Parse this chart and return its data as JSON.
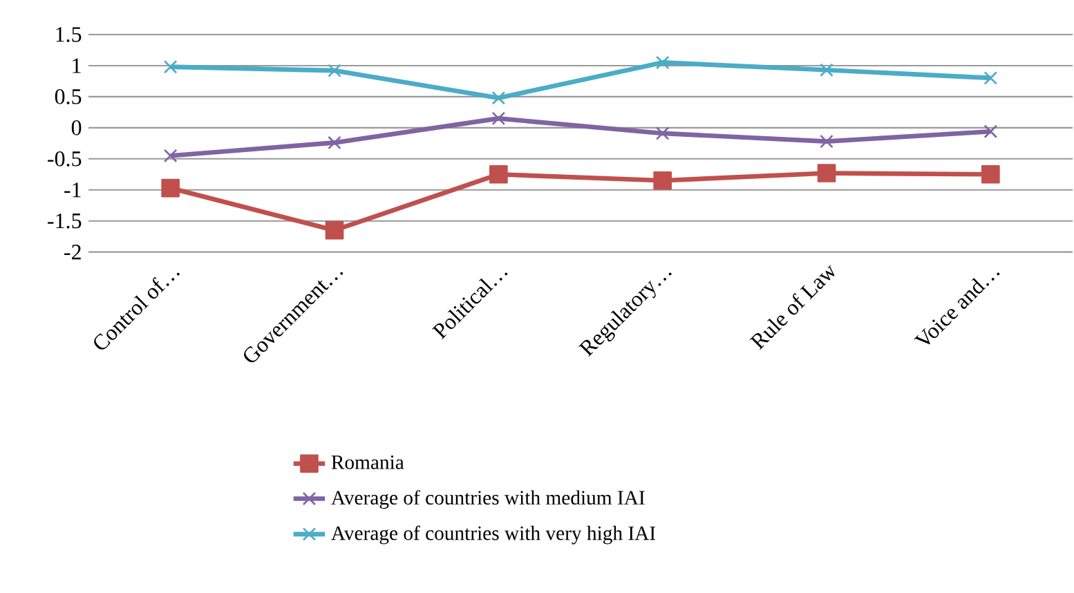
{
  "chart_data": {
    "type": "line",
    "categories": [
      "Control of…",
      "Government…",
      "Political…",
      "Regulatory…",
      "Rule of Law",
      "Voice and…"
    ],
    "series": [
      {
        "name": "Romania",
        "color": "#c0504d",
        "marker": "square",
        "values": [
          -0.97,
          -1.65,
          -0.75,
          -0.85,
          -0.73,
          -0.75
        ]
      },
      {
        "name": "Average of countries with medium IAI",
        "color": "#8064a2",
        "marker": "cross",
        "values": [
          -0.45,
          -0.24,
          0.15,
          -0.09,
          -0.22,
          -0.06
        ]
      },
      {
        "name": "Average of countries with very high IAI",
        "color": "#4bacc6",
        "marker": "cross",
        "values": [
          0.98,
          0.92,
          0.48,
          1.05,
          0.93,
          0.8
        ]
      }
    ],
    "ylim": [
      -2,
      1.5
    ],
    "yticks": [
      -2,
      -1.5,
      -1,
      -0.5,
      0,
      0.5,
      1,
      1.5
    ],
    "grid": "y",
    "legend": "bottom",
    "line_style": "solid"
  }
}
